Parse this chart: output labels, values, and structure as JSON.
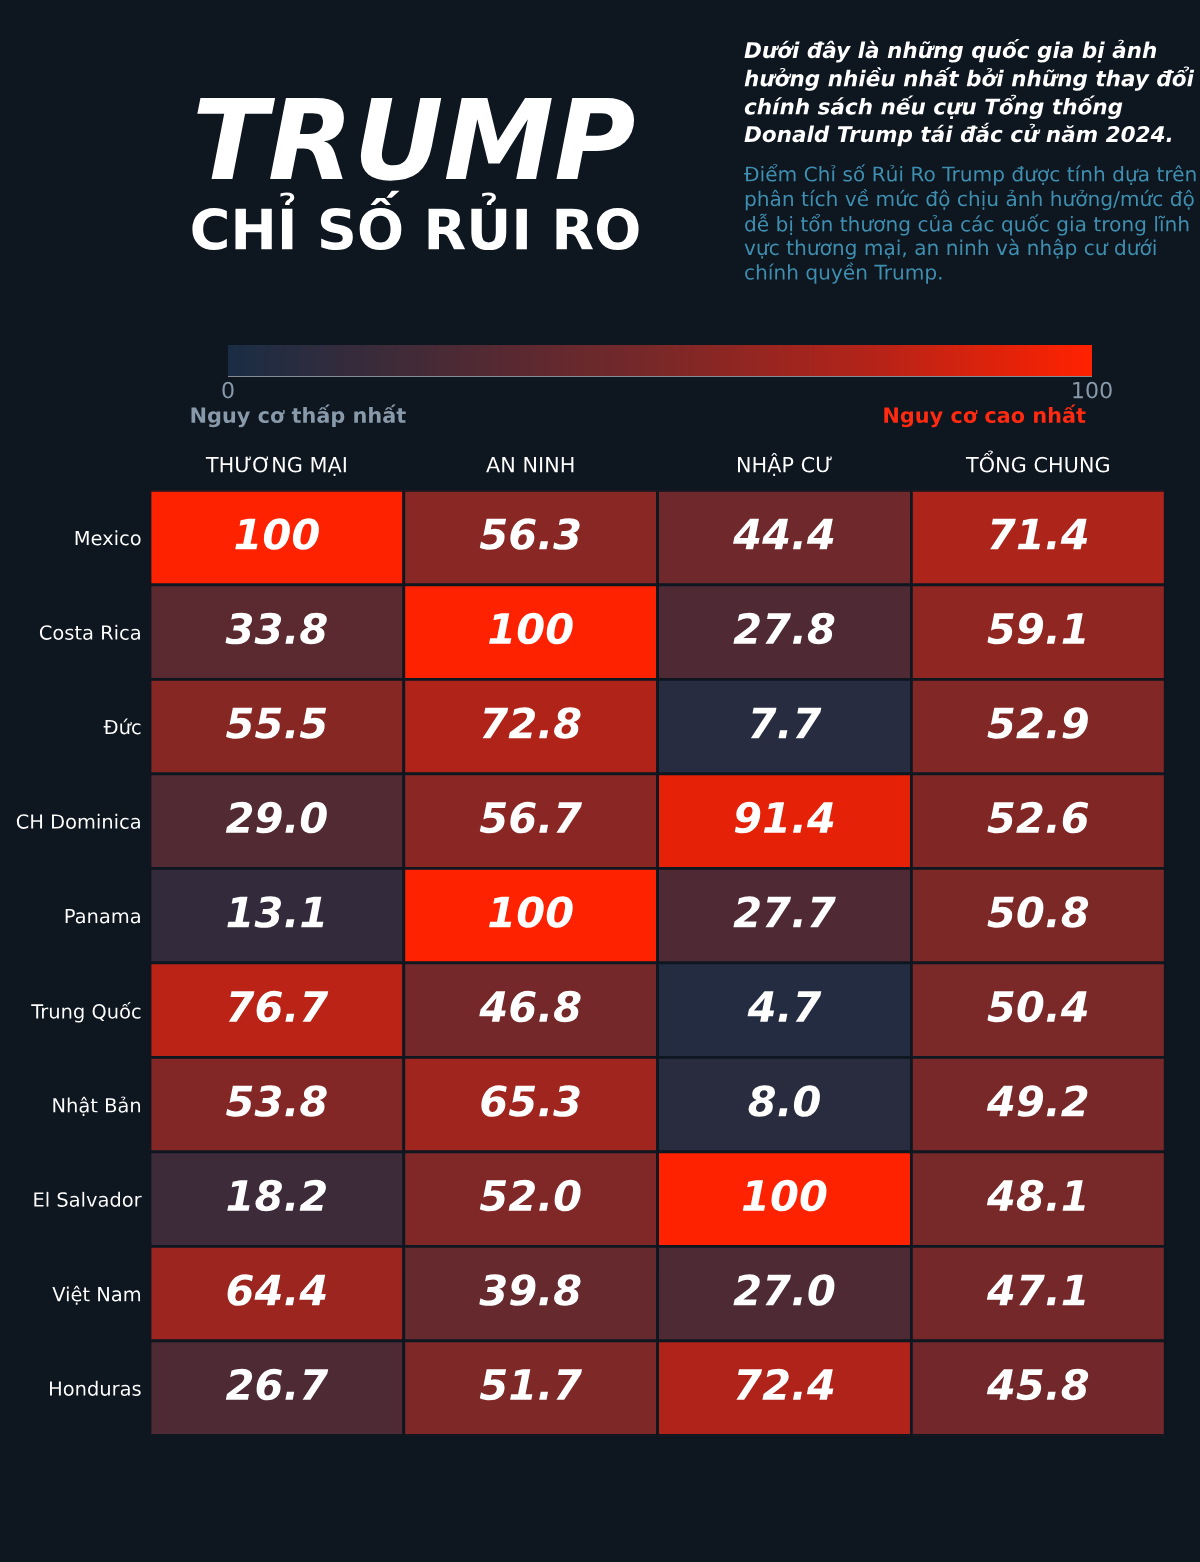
{
  "chart_data": {
    "type": "heatmap",
    "title": "TRUMP",
    "subtitle": "CHỈ SỐ RỦI RO",
    "annotations": [
      "Dưới đây là những quốc gia bị ảnh hưởng nhiều nhất bởi những thay đổi chính sách nếu cựu Tổng thống Donald Trump tái đắc cử năm 2024.",
      "Điểm Chỉ số Rủi Ro Trump được tính dựa trên phân tích về mức độ chịu ảnh hưởng/mức độ dễ bị tổn thương của các quốc gia trong lĩnh vực thương mại, an ninh và nhập cư dưới chính quyền Trump.",
      "Nguy cơ thấp nhất",
      "Nguy cơ cao nhất"
    ],
    "categories": [
      "THƯƠNG MẠI",
      "AN NINH",
      "NHẬP CƯ",
      "TỔNG CHUNG"
    ],
    "y_categories": [
      "Mexico",
      "Costa Rica",
      "Đức",
      "CH Dominica",
      "Panama",
      "Trung Quốc",
      "Nhật Bản",
      "El Salvador",
      "Việt Nam",
      "Honduras"
    ],
    "cells": [
      [
        100,
        56.3,
        44.4,
        71.4
      ],
      [
        33.8,
        100,
        27.8,
        59.1
      ],
      [
        55.5,
        72.8,
        7.7,
        52.9
      ],
      [
        29.0,
        56.7,
        91.4,
        52.6
      ],
      [
        13.1,
        100,
        27.7,
        50.8
      ],
      [
        76.7,
        46.8,
        4.7,
        50.4
      ],
      [
        53.8,
        65.3,
        8.0,
        49.2
      ],
      [
        18.2,
        52.0,
        100,
        48.1
      ],
      [
        64.4,
        39.8,
        27.0,
        47.1
      ],
      [
        26.7,
        51.7,
        72.4,
        45.8
      ]
    ],
    "cell_labels": [
      [
        "100",
        "56.3",
        "44.4",
        "71.4"
      ],
      [
        "33.8",
        "100",
        "27.8",
        "59.1"
      ],
      [
        "55.5",
        "72.8",
        "7.7",
        "52.9"
      ],
      [
        "29.0",
        "56.7",
        "91.4",
        "52.6"
      ],
      [
        "13.1",
        "100",
        "27.7",
        "50.8"
      ],
      [
        "76.7",
        "46.8",
        "4.7",
        "50.4"
      ],
      [
        "53.8",
        "65.3",
        "8.0",
        "49.2"
      ],
      [
        "18.2",
        "52.0",
        "100",
        "48.1"
      ],
      [
        "64.4",
        "39.8",
        "27.0",
        "47.1"
      ],
      [
        "26.7",
        "51.7",
        "72.4",
        "45.8"
      ]
    ],
    "clim": [
      0,
      100
    ],
    "cticks": [
      0,
      100
    ]
  }
}
